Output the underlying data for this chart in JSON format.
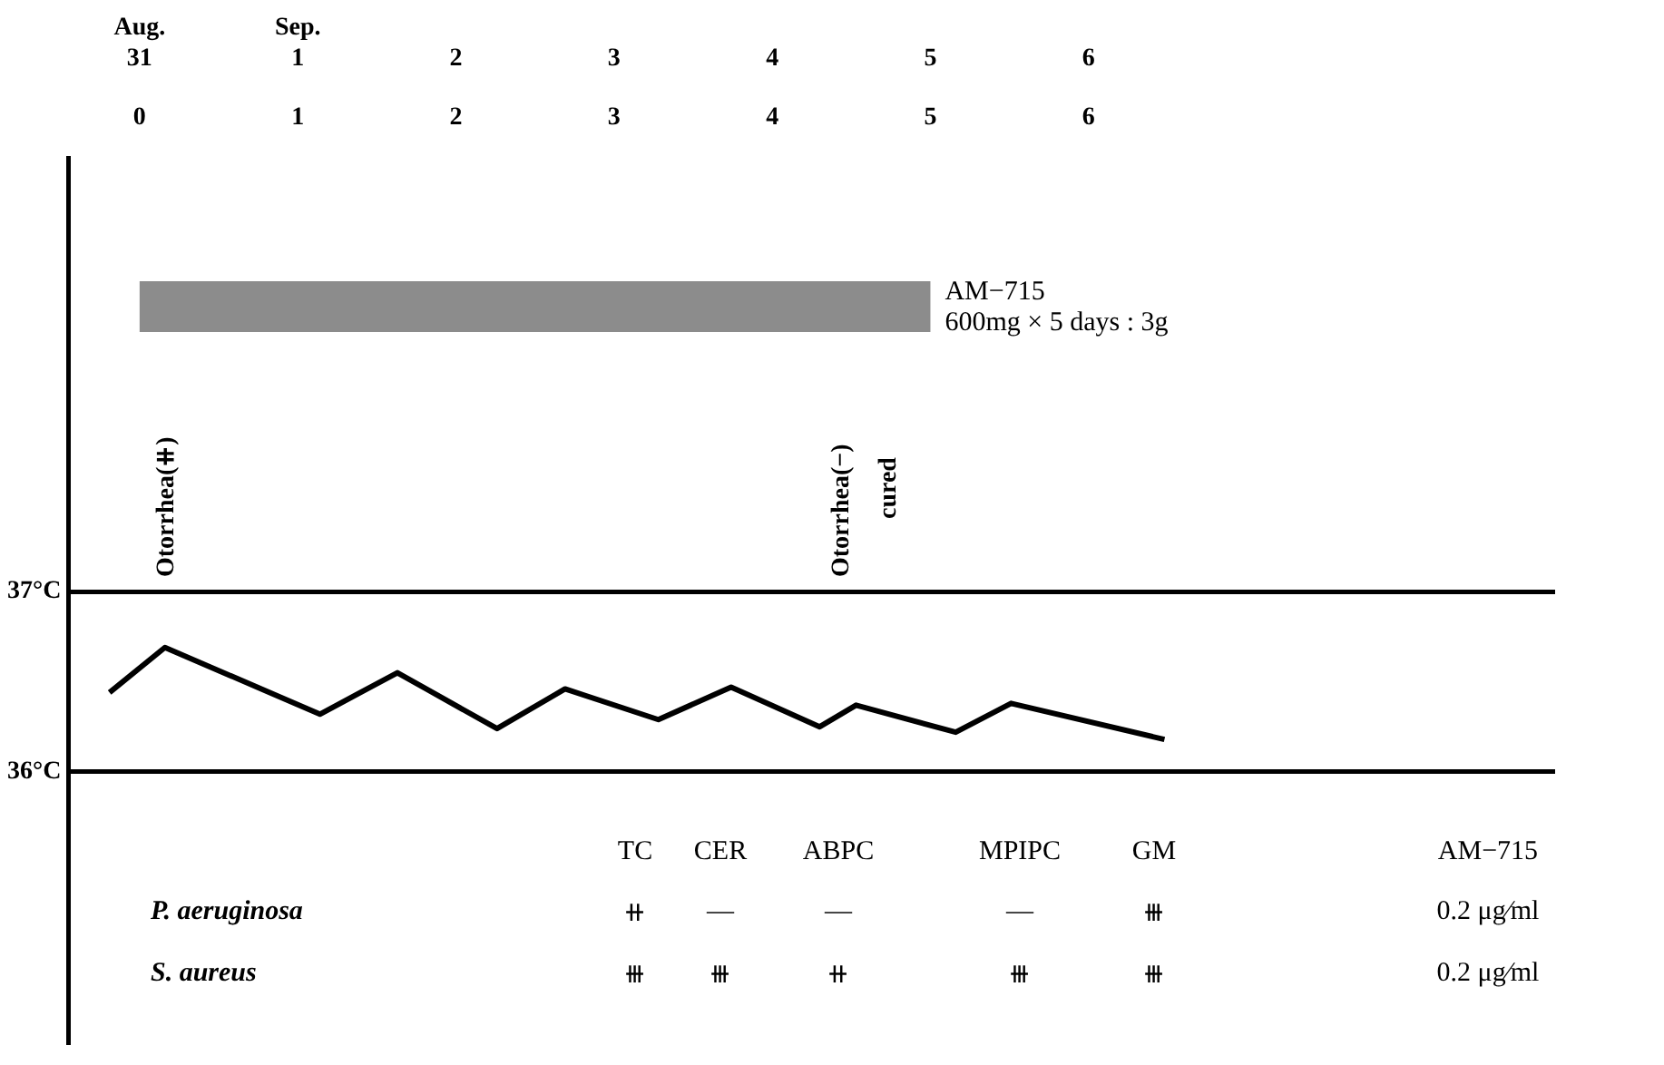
{
  "chart_data": {
    "type": "line",
    "x": [
      -0.19,
      0.16,
      1.14,
      1.63,
      2.26,
      2.69,
      3.28,
      3.74,
      4.3,
      4.53,
      5.16,
      5.51,
      6.48
    ],
    "series": [
      {
        "color": "#000000",
        "values": [
          36.44,
          36.69,
          36.32,
          36.55,
          36.24,
          36.46,
          36.29,
          36.47,
          36.25,
          36.37,
          36.22,
          36.38,
          36.18
        ]
      }
    ],
    "xlim": [
      -0.45,
      8.95
    ],
    "xticks": [
      0,
      1,
      2,
      3,
      4,
      5,
      6
    ],
    "x2lim": [
      -0.45,
      8.95
    ],
    "x2ticks": [
      {
        "value": 0,
        "label": "Aug.\n31"
      },
      {
        "value": 1,
        "label": "Sep.\n1"
      },
      2,
      3,
      4,
      5,
      6
    ],
    "ylim": [
      34.5,
      39.4
    ],
    "yticks": [
      {
        "value": 36,
        "label": "36°C"
      },
      {
        "value": 37,
        "label": "37°C"
      }
    ],
    "grid": "y",
    "legend": false,
    "marker": "none",
    "line_style": "solid",
    "bands": [
      {
        "axis": "x",
        "from": 0,
        "to": 5,
        "label": "AM−715\n600mg × 5 days : 3g",
        "color": "#8c8c8c"
      }
    ],
    "annotations": [
      "Otorrhea(⧺)",
      "Otorrhea(−)",
      "cured",
      "TC",
      "CER",
      "ABPC",
      "MPIPC",
      "GM",
      "AM−715",
      "P. aeruginosa",
      "⧺",
      "—",
      "—",
      "—",
      "⧻",
      "0.2 μg∕ml",
      "S. aureus",
      "⧻",
      "⧻",
      "⧺",
      "⧻",
      "⧻",
      "0.2 μg∕ml"
    ]
  }
}
